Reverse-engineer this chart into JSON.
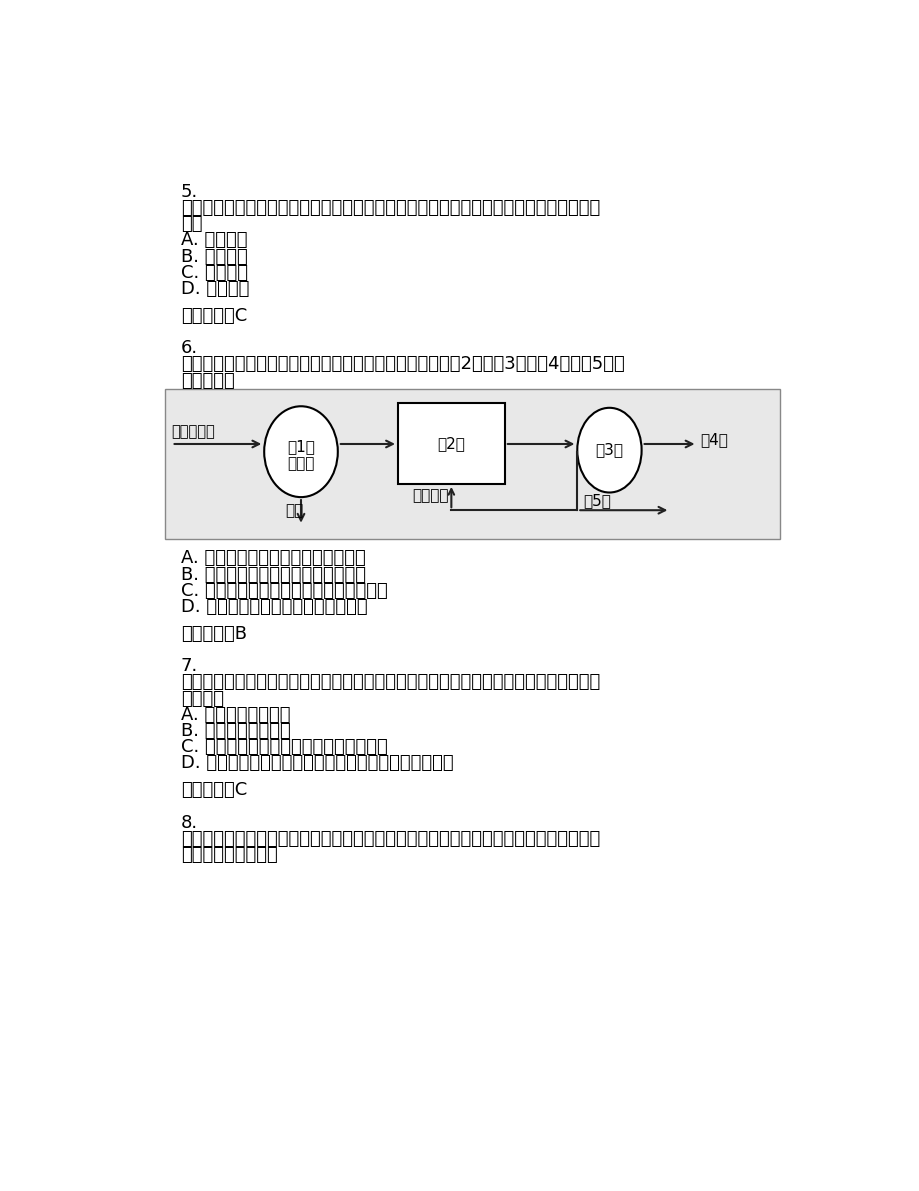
{
  "bg_color": "#ffffff",
  "text_color": "#000000",
  "q5": {
    "number": "5.",
    "line1": "单选题：当一个新建项目全部指标的清洁生产水平达到（）时，尚须做出较大的调整和改",
    "line2": "进。",
    "options": [
      "A. 一级水平",
      "B. 二级水平",
      "C. 三级水平",
      "D. 四级水平"
    ],
    "answer": "正确答案：C"
  },
  "q6": {
    "number": "6.",
    "line1": "单选题：传统活性污泥法处理工艺流程示意图如下，其中（2）、（3）、（4）、（5）分",
    "line2": "别是（）。",
    "options": [
      "A. 二沉池、曝气池、出水、剩余污泥",
      "B. 曝气池、二沉池、出水、剩余污泥",
      "C. 曝气池、污泥浓缩池、出水、干化污泥",
      "D. 曝气池、二沉池、剩余污泥、出水"
    ],
    "answer": "正确答案：B"
  },
  "q7": {
    "number": "7.",
    "line1": "单选题：建设项目竣工环境保护验收时，对大气有组织排放的点源，应对照行业要求，考",
    "line2": "核（）。",
    "options": [
      "A. 最高允许排放浓度",
      "B. 最高允许排放速率",
      "C. 最高允许排放浓度和最高允许排放速率",
      "D. 监控点与参照点浓度差值和周界外最高浓度点浓度值"
    ],
    "answer": "正确答案：C"
  },
  "q8": {
    "number": "8.",
    "line1": "多选题：据《环境影响评价技术导则生态影响》，生态影响评价中，类比分析法类比对象",
    "line2": "的选择条件是（）。"
  },
  "diagram": {
    "bg_color": "#e8e8e8",
    "line_color": "#333333",
    "node1_label1": "（1）",
    "node1_label2": "初沉池",
    "node2_label": "（2）",
    "node3_label": "（3）",
    "inlet_label": "未处理废水",
    "sludge_label": "污泥",
    "recycle_label": "回流污泥",
    "outlet4_label": "（4）",
    "outlet5_label": "（5）"
  }
}
